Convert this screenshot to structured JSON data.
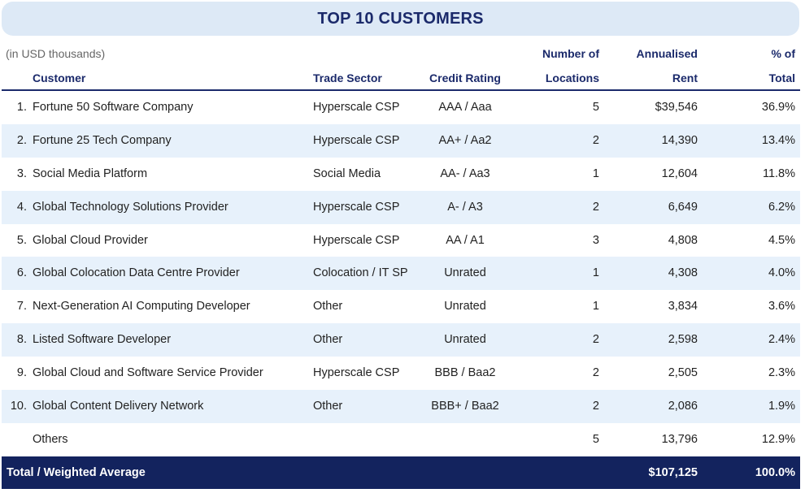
{
  "title": "TOP 10 CUSTOMERS",
  "note": "(in USD thousands)",
  "headers": {
    "customer": "Customer",
    "trade_sector": "Trade Sector",
    "credit_rating": "Credit Rating",
    "locations_line1": "Number of",
    "locations_line2": "Locations",
    "rent_line1": "Annualised",
    "rent_line2": "Rent",
    "pct_line1": "% of",
    "pct_line2": "Total"
  },
  "rows": [
    {
      "num": "1.",
      "customer": "Fortune 50 Software Company",
      "sector": "Hyperscale CSP",
      "rating": "AAA / Aaa",
      "locations": "5",
      "rent": "$39,546",
      "pct": "36.9%"
    },
    {
      "num": "2.",
      "customer": "Fortune 25 Tech Company",
      "sector": "Hyperscale CSP",
      "rating": "AA+ / Aa2",
      "locations": "2",
      "rent": "14,390",
      "pct": "13.4%"
    },
    {
      "num": "3.",
      "customer": "Social Media Platform",
      "sector": "Social Media",
      "rating": "AA- / Aa3",
      "locations": "1",
      "rent": "12,604",
      "pct": "11.8%"
    },
    {
      "num": "4.",
      "customer": "Global Technology Solutions Provider",
      "sector": "Hyperscale CSP",
      "rating": "A- / A3",
      "locations": "2",
      "rent": "6,649",
      "pct": "6.2%"
    },
    {
      "num": "5.",
      "customer": "Global Cloud Provider",
      "sector": "Hyperscale CSP",
      "rating": "AA / A1",
      "locations": "3",
      "rent": "4,808",
      "pct": "4.5%"
    },
    {
      "num": "6.",
      "customer": "Global Colocation Data Centre Provider",
      "sector": "Colocation / IT SP",
      "rating": "Unrated",
      "locations": "1",
      "rent": "4,308",
      "pct": "4.0%"
    },
    {
      "num": "7.",
      "customer": "Next-Generation AI Computing Developer",
      "sector": "Other",
      "rating": "Unrated",
      "locations": "1",
      "rent": "3,834",
      "pct": "3.6%"
    },
    {
      "num": "8.",
      "customer": "Listed Software Developer",
      "sector": "Other",
      "rating": "Unrated",
      "locations": "2",
      "rent": "2,598",
      "pct": "2.4%"
    },
    {
      "num": "9.",
      "customer": "Global Cloud and Software Service Provider",
      "sector": "Hyperscale CSP",
      "rating": "BBB / Baa2",
      "locations": "2",
      "rent": "2,505",
      "pct": "2.3%"
    },
    {
      "num": "10.",
      "customer": "Global Content Delivery Network",
      "sector": "Other",
      "rating": "BBB+ / Baa2",
      "locations": "2",
      "rent": "2,086",
      "pct": "1.9%"
    },
    {
      "num": "",
      "customer": "Others",
      "sector": "",
      "rating": "",
      "locations": "5",
      "rent": "13,796",
      "pct": "12.9%"
    }
  ],
  "total": {
    "label": "Total / Weighted Average",
    "rent": "$107,125",
    "pct": "100.0%"
  },
  "colors": {
    "navy": "#13235e",
    "header_text": "#1b2a6b",
    "banner_bg": "#dde9f6",
    "stripe": "#e7f1fb"
  }
}
